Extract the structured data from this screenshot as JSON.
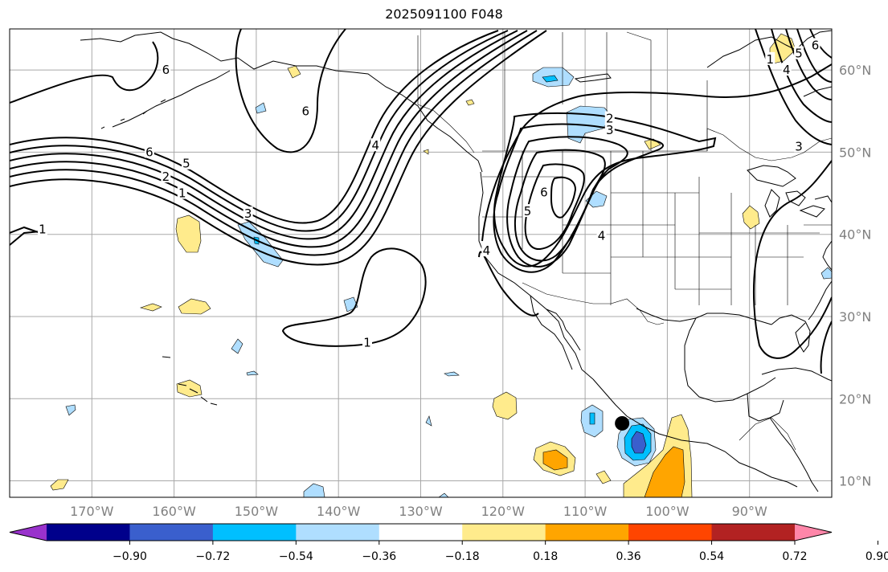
{
  "title": "2025091100 F048",
  "map": {
    "projection": "cylindrical",
    "lon_range": [
      -180,
      -80
    ],
    "lat_range": [
      8,
      65
    ],
    "lon_ticks": [
      {
        "lon": -170,
        "label": "170°W"
      },
      {
        "lon": -160,
        "label": "160°W"
      },
      {
        "lon": -150,
        "label": "150°W"
      },
      {
        "lon": -140,
        "label": "140°W"
      },
      {
        "lon": -130,
        "label": "130°W"
      },
      {
        "lon": -120,
        "label": "120°W"
      },
      {
        "lon": -110,
        "label": "110°W"
      },
      {
        "lon": -100,
        "label": "100°W"
      },
      {
        "lon": -90,
        "label": "90°W"
      }
    ],
    "lat_ticks": [
      {
        "lat": 60,
        "label": "60°N"
      },
      {
        "lat": 50,
        "label": "50°N"
      },
      {
        "lat": 40,
        "label": "40°N"
      },
      {
        "lat": 30,
        "label": "30°N"
      },
      {
        "lat": 20,
        "label": "20°N"
      },
      {
        "lat": 10,
        "label": "10°N"
      }
    ],
    "marker": {
      "name": "storm-center",
      "lon": -105.5,
      "lat": 17.0
    },
    "contour_labels": [
      {
        "text": "6",
        "lon": -161,
        "lat": 60
      },
      {
        "text": "6",
        "lon": -144,
        "lat": 55
      },
      {
        "text": "6",
        "lon": -163,
        "lat": 50
      },
      {
        "text": "5",
        "lon": -158.5,
        "lat": 48.6
      },
      {
        "text": "2",
        "lon": -161,
        "lat": 47
      },
      {
        "text": "1",
        "lon": -159,
        "lat": 45
      },
      {
        "text": "3",
        "lon": -151,
        "lat": 42.5
      },
      {
        "text": "1",
        "lon": -176,
        "lat": 40.6
      },
      {
        "text": "4",
        "lon": -135.5,
        "lat": 50.8
      },
      {
        "text": "1",
        "lon": -136.5,
        "lat": 26.8
      },
      {
        "text": "2",
        "lon": -107,
        "lat": 54.1
      },
      {
        "text": "3",
        "lon": -107,
        "lat": 52.7
      },
      {
        "text": "6",
        "lon": -115,
        "lat": 45.1
      },
      {
        "text": "5",
        "lon": -117,
        "lat": 42.8
      },
      {
        "text": "4",
        "lon": -108,
        "lat": 39.8
      },
      {
        "text": "4",
        "lon": -122,
        "lat": 38
      },
      {
        "text": "3",
        "lon": -84,
        "lat": 50.7
      },
      {
        "text": "4",
        "lon": -85.5,
        "lat": 60
      },
      {
        "text": "5",
        "lon": -84,
        "lat": 62
      },
      {
        "text": "6",
        "lon": -82,
        "lat": 63
      },
      {
        "text": "1",
        "lon": -87.5,
        "lat": 61.3
      }
    ]
  },
  "colorbar": {
    "colors": [
      "#9932cc",
      "#00008b",
      "#3a5fcd",
      "#00bfff",
      "#afdeff",
      "#ffffff",
      "#ffeb8c",
      "#ffa500",
      "#ff4500",
      "#b22222",
      "#ff86a9"
    ],
    "ticks": [
      "−0.90",
      "−0.72",
      "−0.54",
      "−0.36",
      "−0.18",
      "0.18",
      "0.36",
      "0.54",
      "0.72",
      "0.90"
    ]
  }
}
